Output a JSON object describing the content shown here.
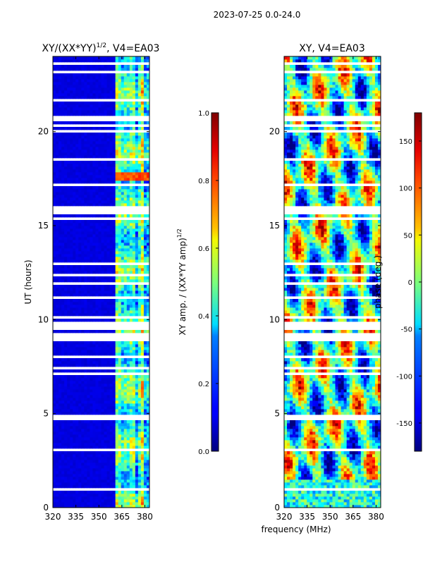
{
  "figure": {
    "suptitle": "2023-07-25 0.0-24.0",
    "xlabel": "frequency (MHz)"
  },
  "chart_data": [
    {
      "type": "heatmap",
      "title_main": "XY/(XX*YY)",
      "title_sup": "1/2",
      "title_tail": ", V4=EA03",
      "xlabel": "",
      "ylabel": "UT (hours)",
      "xlim": [
        320,
        383
      ],
      "ylim": [
        0,
        24
      ],
      "xticks": [
        320,
        335,
        350,
        365,
        380
      ],
      "yticks": [
        0,
        5,
        10,
        15,
        20
      ],
      "colorscale": "jet",
      "colorbar": {
        "label_main": "XY amp. / (XX*YY amp)",
        "label_sup": "1/2",
        "range": [
          0.0,
          1.0
        ],
        "ticks": [
          "0.0",
          "0.2",
          "0.4",
          "0.6",
          "0.8",
          "1.0"
        ]
      },
      "description_band_mhz": [
        360,
        383
      ]
    },
    {
      "type": "heatmap",
      "title": "XY, V4=EA03",
      "xlabel": "",
      "ylabel": "",
      "xlim": [
        320,
        383
      ],
      "ylim": [
        0,
        24
      ],
      "xticks": [
        320,
        335,
        350,
        365,
        380
      ],
      "yticks": [
        0,
        5,
        10,
        15,
        20
      ],
      "colorscale": "jet",
      "colorbar": {
        "label": "phase (deg.)",
        "range": [
          -180,
          180
        ],
        "ticks": [
          -150,
          -100,
          -50,
          0,
          50,
          100,
          150
        ]
      }
    }
  ]
}
